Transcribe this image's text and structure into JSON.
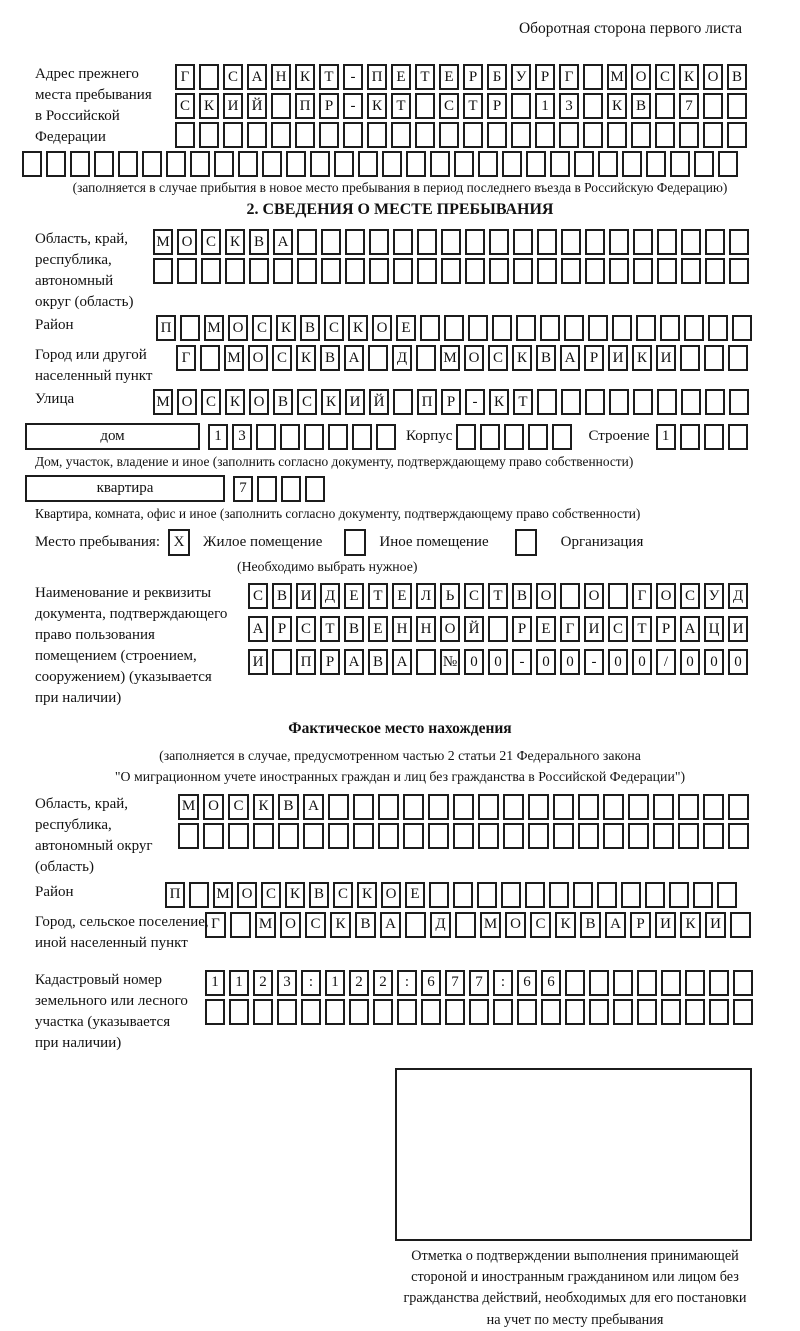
{
  "header": {
    "page_note": "Оборотная сторона первого листа"
  },
  "prev_address": {
    "label": [
      "Адрес прежнего",
      "места пребывания",
      "в Российской",
      "Федерации"
    ],
    "row1": {
      "count": 24,
      "text": "Г САНКТ-ПЕТЕРБУРГ МОСКОВ"
    },
    "row2": {
      "count": 24,
      "text": "СКИЙ ПР-КТ СТР 13 КВ 7"
    },
    "row3": {
      "count": 24,
      "text": ""
    },
    "row4": {
      "count": 30,
      "text": ""
    },
    "note": "(заполняется в случае прибытия в новое место пребывания в период последнего въезда в Российскую Федерацию)"
  },
  "section2": {
    "title": "2. СВЕДЕНИЯ О МЕСТЕ ПРЕБЫВАНИЯ",
    "oblast": {
      "label": [
        "Область, край,",
        "республика,",
        "автономный",
        "округ (область)"
      ],
      "row1": {
        "count": 25,
        "text": "МОСКВА"
      },
      "row2": {
        "count": 25,
        "text": ""
      }
    },
    "rayon": {
      "label": "Район",
      "row": {
        "count": 25,
        "text": "П МОСКВСКОЕ"
      }
    },
    "gorod": {
      "label": [
        "Город или другой",
        "населенный пункт"
      ],
      "row": {
        "count": 24,
        "text": "Г МОСКВА Д МОСКВАРИКИ"
      }
    },
    "ulitsa": {
      "label": "Улица",
      "row": {
        "count": 25,
        "text": "МОСКОВСКИЙ ПР-КТ"
      }
    },
    "dom": {
      "box_label": "дом",
      "row": {
        "count": 8,
        "text": "13"
      },
      "korpus_label": "Корпус",
      "korpus_row": {
        "count": 5,
        "text": ""
      },
      "stroenie_label": "Строение",
      "stroenie_row": {
        "count": 4,
        "text": "1"
      }
    },
    "dom_caption": "Дом, участок, владение и иное (заполнить согласно документу, подтверждающему право собственности)",
    "kvartira": {
      "box_label": "квартира",
      "row": {
        "count": 4,
        "text": "7"
      }
    },
    "kvartira_caption": "Квартира, комната, офис и иное (заполнить согласно документу, подтверждающему право собственности)",
    "mesto": {
      "label": "Место пребывания:",
      "options": [
        {
          "label": "Жилое помещение",
          "checked": "X"
        },
        {
          "label": "Иное помещение",
          "checked": ""
        },
        {
          "label": "Организация",
          "checked": ""
        }
      ],
      "note": "(Необходимо выбрать нужное)"
    },
    "doc": {
      "label": [
        "Наименование и реквизиты",
        "документа, подтверждающего",
        "право пользования",
        "помещением (строением,",
        "сооружением) (указывается",
        "при наличии)"
      ],
      "row1": {
        "count": 21,
        "text": "СВИДЕТЕЛЬСТВО О ГОСУД"
      },
      "row2": {
        "count": 21,
        "text": "АРСТВЕННОЙ РЕГИСТРАЦИ"
      },
      "row3": {
        "count": 21,
        "text": "И ПРАВА №00-00-00/000"
      }
    }
  },
  "section3": {
    "title": "Фактическое место нахождения",
    "note": [
      "(заполняется в случае, предусмотренном частью 2 статьи 21 Федерального закона",
      "\"О миграционном учете иностранных граждан и лиц без гражданства в Российской Федерации\")"
    ],
    "oblast": {
      "label": [
        "Область, край,",
        "республика,",
        "автономный округ",
        "(область)"
      ],
      "row1": {
        "count": 23,
        "text": "МОСКВА"
      },
      "row2": {
        "count": 23,
        "text": ""
      }
    },
    "rayon": {
      "label": "Район",
      "row": {
        "count": 24,
        "text": "П МОСКВСКОЕ"
      }
    },
    "gorod": {
      "label": [
        "Город, сельское поселение,",
        "иной населенный пункт"
      ],
      "row": {
        "count": 22,
        "text": "Г МОСКВА Д МОСКВАРИКИ"
      }
    },
    "kadastr": {
      "label": [
        "Кадастровый номер",
        "земельного или лесного",
        "участка (указывается",
        "при наличии)"
      ],
      "row1": {
        "count": 23,
        "text": "1123:122:677:66"
      },
      "row2": {
        "count": 23,
        "text": ""
      }
    },
    "stamp_caption": [
      "Отметка о подтверждении выполнения принимающей",
      "стороной и иностранным гражданином или лицом без",
      "гражданства действий, необходимых для его постановки",
      "на учет по месту пребывания"
    ]
  }
}
